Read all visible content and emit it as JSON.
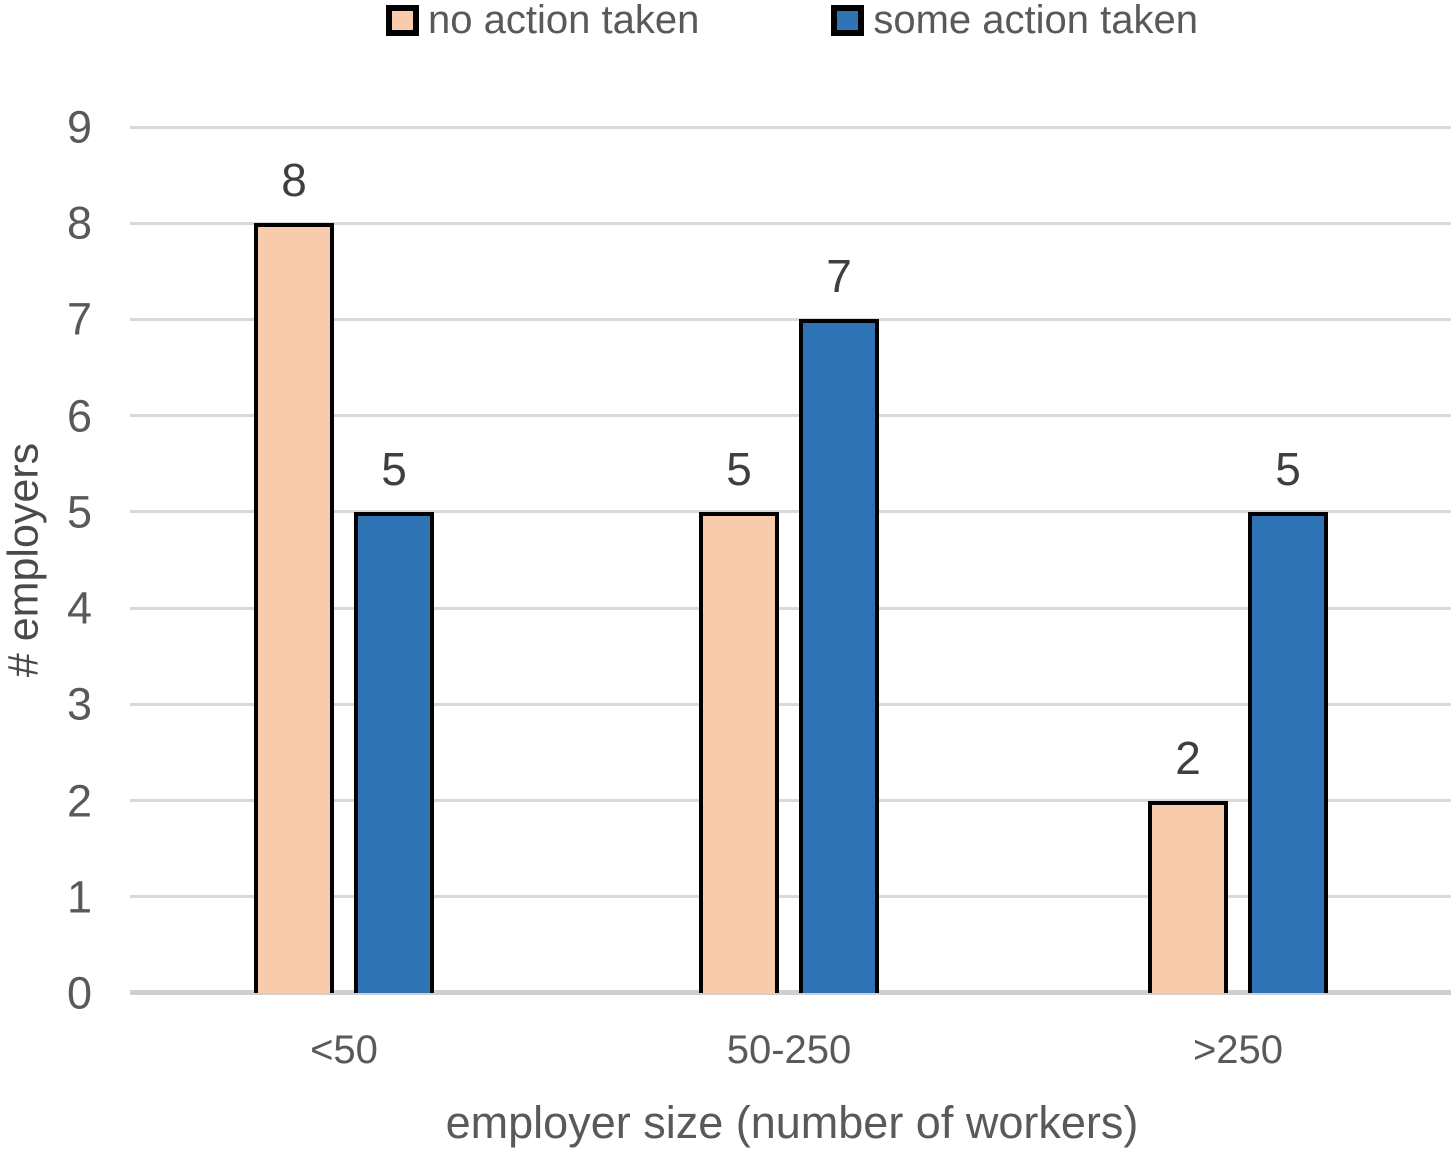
{
  "chart_data": {
    "type": "bar",
    "title": "",
    "categories": [
      "<50",
      "50-250",
      ">250"
    ],
    "series": [
      {
        "name": "no action taken",
        "color": "#F7CBAC",
        "values": [
          8,
          5,
          2
        ]
      },
      {
        "name": "some action taken",
        "color": "#2E74B5",
        "values": [
          5,
          7,
          5
        ]
      }
    ],
    "data_labels": [
      [
        "8",
        "5",
        "2"
      ],
      [
        "5",
        "7",
        "5"
      ]
    ],
    "xlabel": "employer size (number of workers)",
    "ylabel": "# employers",
    "ylim": [
      0,
      9
    ],
    "yticks": [
      "0",
      "1",
      "2",
      "3",
      "4",
      "5",
      "6",
      "7",
      "8",
      "9"
    ],
    "grid": true,
    "legend_position": "top",
    "bar_border_color": "#000000",
    "gridline_color": "#D9D9D9",
    "axis_line_color": "#CFCFCF",
    "text_color": "#595959"
  }
}
